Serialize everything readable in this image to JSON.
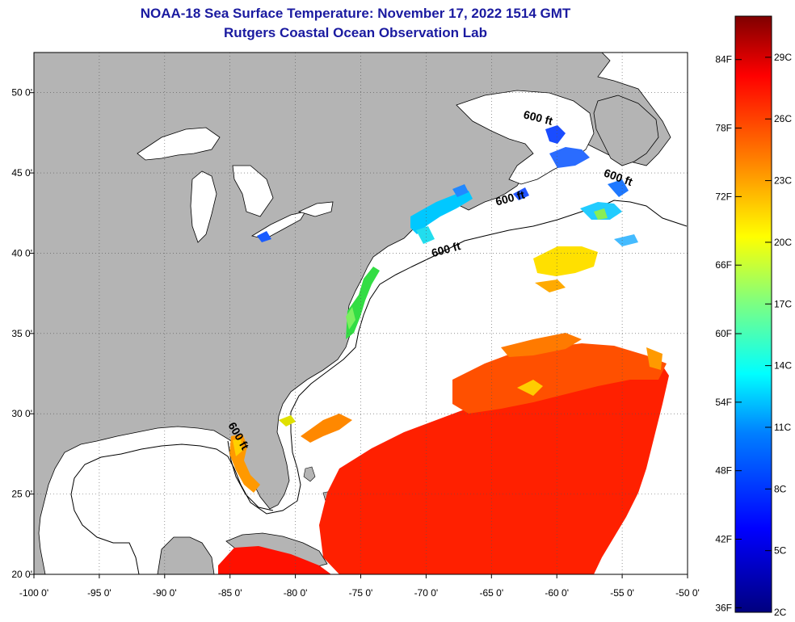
{
  "header": {
    "title": "NOAA-18 Sea Surface Temperature:  November 17, 2022 1514 GMT",
    "subtitle": "Rutgers Coastal Ocean Observation Lab"
  },
  "map": {
    "lon_range": [
      -100,
      -50
    ],
    "lat_range": [
      20,
      52.5
    ],
    "lon_ticks": [
      -100,
      -95,
      -90,
      -85,
      -80,
      -75,
      -70,
      -65,
      -60,
      -55,
      -50
    ],
    "lon_tick_labels": [
      "-100 0'",
      "-95 0'",
      "-90 0'",
      "-85 0'",
      "-80 0'",
      "-75 0'",
      "-70 0'",
      "-65 0'",
      "-60 0'",
      "-55 0'",
      "-50 0'"
    ],
    "lat_ticks": [
      20,
      25,
      30,
      35,
      40,
      45,
      50
    ],
    "lat_tick_labels": [
      "20 0'",
      "25 0'",
      "30 0'",
      "35 0'",
      "40 0'",
      "45 0'",
      "50 0'"
    ],
    "grid": true,
    "contour_labels": [
      {
        "text": "600 ft",
        "lon": -61.5,
        "lat": 48.2,
        "rotate": 14
      },
      {
        "text": "600 ft",
        "lon": -55.4,
        "lat": 44.5,
        "rotate": 20
      },
      {
        "text": "600 ft",
        "lon": -63.5,
        "lat": 43.2,
        "rotate": -15
      },
      {
        "text": "600 ft",
        "lon": -68.4,
        "lat": 40.0,
        "rotate": -15
      },
      {
        "text": "600 ft",
        "lon": -84.6,
        "lat": 28.5,
        "rotate": 60
      }
    ],
    "colors": {
      "land": "#b4b4b4",
      "water_nodata": "#ffffff"
    }
  },
  "colorbar": {
    "fahrenheit_labels": [
      "84F",
      "78F",
      "72F",
      "66F",
      "60F",
      "54F",
      "48F",
      "42F",
      "36F"
    ],
    "celsius_labels": [
      "29C",
      "26C",
      "23C",
      "20C",
      "17C",
      "14C",
      "11C",
      "8C",
      "5C",
      "2C"
    ],
    "range_celsius": [
      2,
      31
    ],
    "colors": [
      "#00007f",
      "#0000ff",
      "#007fff",
      "#00ffff",
      "#7fff7f",
      "#ffff00",
      "#ff7f00",
      "#ff0000",
      "#7f0000"
    ]
  }
}
